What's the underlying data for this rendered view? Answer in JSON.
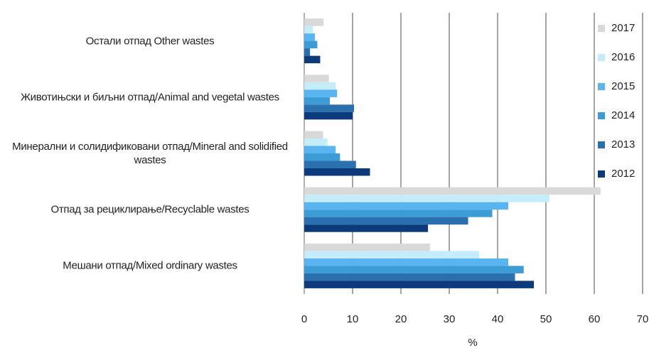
{
  "chart_data": {
    "type": "hbar",
    "x_label": "%",
    "categories": [
      "Остали отпад Other wastes",
      "Животињски и биљни отпад/Animal and vegetal wastes",
      "Минерални и солидификовани отпад/Mineral and solidified wastes",
      "Отпад за рециклирање/Recyclable wastes",
      "Мешани отпад/Mixed ordinary wastes"
    ],
    "series": [
      {
        "name": "2017",
        "color": "#d9d9d9",
        "values": [
          4.0,
          5.1,
          3.9,
          61.3,
          26.0
        ]
      },
      {
        "name": "2016",
        "color": "#c5ecfb",
        "values": [
          1.8,
          6.5,
          4.8,
          50.7,
          36.2
        ]
      },
      {
        "name": "2015",
        "color": "#5ab4f0",
        "values": [
          2.2,
          6.8,
          6.5,
          42.2,
          42.2
        ]
      },
      {
        "name": "2014",
        "color": "#3d9bd6",
        "values": [
          2.7,
          5.3,
          7.4,
          38.9,
          45.4
        ]
      },
      {
        "name": "2013",
        "color": "#2a6fae",
        "values": [
          1.2,
          10.3,
          10.7,
          33.9,
          43.6
        ]
      },
      {
        "name": "2012",
        "color": "#0c3a7a",
        "values": [
          3.3,
          10.0,
          13.6,
          25.6,
          47.5
        ]
      }
    ],
    "xlim": [
      0,
      70
    ],
    "xticks": [
      0,
      10,
      20,
      30,
      40,
      50,
      60,
      70
    ],
    "grid": true
  }
}
